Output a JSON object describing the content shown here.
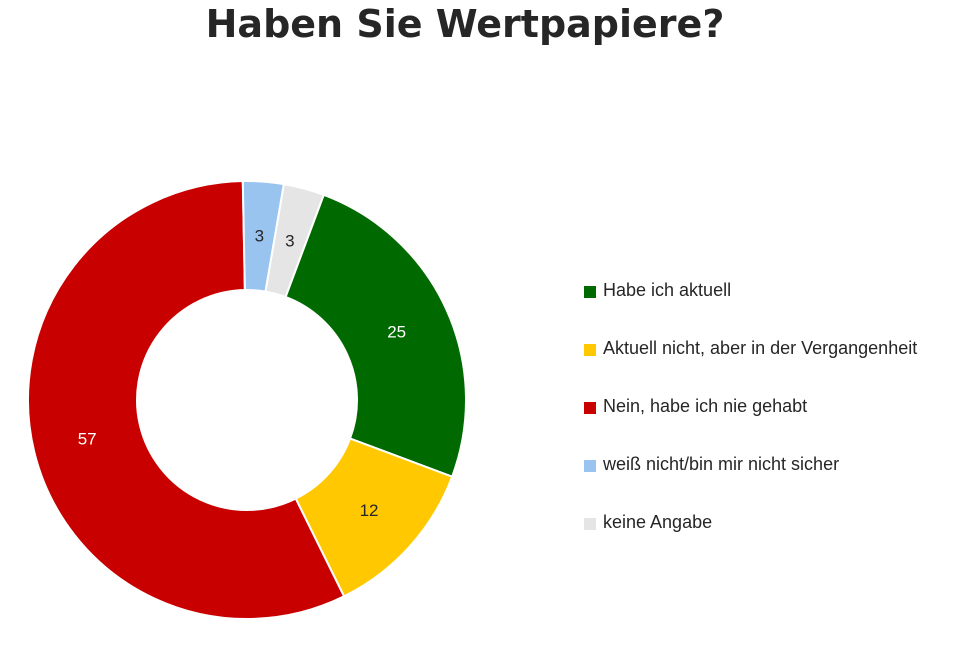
{
  "chart_data": {
    "type": "pie",
    "variant": "donut",
    "title": "Haben Sie Wertpapiere?",
    "slices": [
      {
        "label": "Habe ich aktuell",
        "value": 25,
        "color": "#006a00",
        "label_color": "#ffffff"
      },
      {
        "label": "Aktuell nicht, aber in der Vergangenheit",
        "value": 12,
        "color": "#ffc800",
        "label_color": "#262626"
      },
      {
        "label": "Nein, habe ich nie gehabt",
        "value": 57,
        "color": "#c80000",
        "label_color": "#ffffff"
      },
      {
        "label": "weiß nicht/bin mir nicht sicher",
        "value": 3,
        "color": "#9ac4f0",
        "label_color": "#262626"
      },
      {
        "label": "keine Angabe",
        "value": 3,
        "color": "#e5e5e5",
        "label_color": "#262626"
      }
    ],
    "start_direction": "top, clockwise, after small slices",
    "legend_position": "right"
  }
}
